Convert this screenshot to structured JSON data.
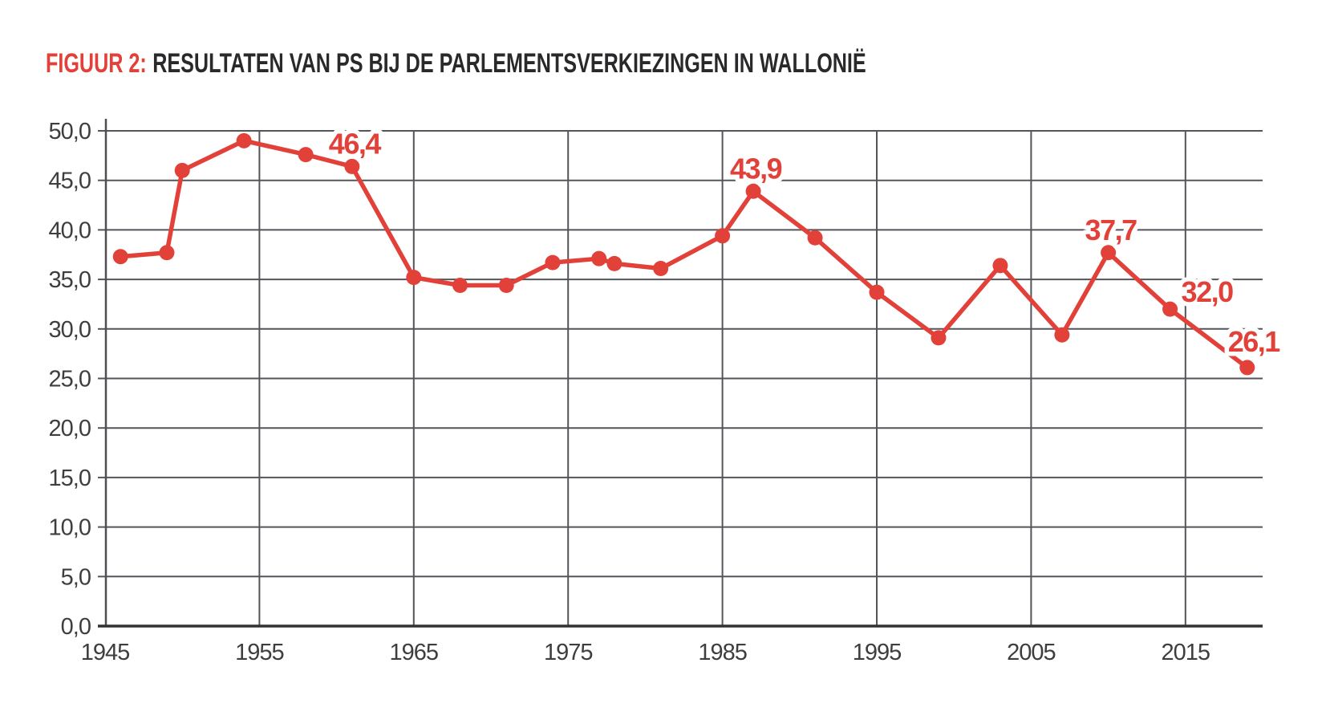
{
  "title": {
    "figure_label": "FIGUUR 2:",
    "text": "RESULTATEN VAN PS BIJ DE PARLEMENTSVERKIEZINGEN IN WALLONIË"
  },
  "colors": {
    "accent_red": "#e2413a",
    "title_dark": "#29282b",
    "tick_text": "#3e3e41",
    "gridline": "#54555a",
    "y_axis": "#4e4f53",
    "x_axis": "#323235",
    "background": "#ffffff"
  },
  "chart_data": {
    "type": "line",
    "title": "FIGUUR 2: RESULTATEN VAN PS BIJ DE PARLEMENTSVERKIEZINGEN IN WALLONIË",
    "xlabel": "",
    "ylabel": "",
    "x": [
      1946,
      1949,
      1950,
      1954,
      1958,
      1961,
      1965,
      1968,
      1971,
      1974,
      1977,
      1978,
      1981,
      1985,
      1987,
      1991,
      1995,
      1999,
      2003,
      2007,
      2010,
      2014,
      2019
    ],
    "series": [
      {
        "name": "PS",
        "color": "#e2413a",
        "values": [
          37.3,
          37.7,
          46.0,
          49.0,
          47.6,
          46.4,
          35.2,
          34.4,
          34.4,
          36.7,
          37.1,
          36.6,
          36.1,
          39.4,
          43.9,
          39.2,
          33.7,
          29.1,
          36.4,
          29.4,
          37.7,
          32.0,
          26.1
        ]
      }
    ],
    "xlim": [
      1945,
      2020
    ],
    "ylim": [
      0,
      50
    ],
    "x_ticks": [
      1945,
      1955,
      1965,
      1975,
      1985,
      1995,
      2005,
      2015
    ],
    "y_ticks": [
      0,
      5,
      10,
      15,
      20,
      25,
      30,
      35,
      40,
      45,
      50
    ],
    "y_tick_labels": [
      "0,0",
      "5,0",
      "10,0",
      "15,0",
      "20,0",
      "25,0",
      "30,0",
      "35,0",
      "40,0",
      "45,0",
      "50,0"
    ],
    "x_tick_labels": [
      "1945",
      "1955",
      "1965",
      "1975",
      "1985",
      "1995",
      "2005",
      "2015"
    ],
    "grid": true,
    "legend_position": "none",
    "decimal_separator": ",",
    "annotations": [
      {
        "year": 1961,
        "label": "46,4",
        "placement": "above"
      },
      {
        "year": 1987,
        "label": "43,9",
        "placement": "above"
      },
      {
        "year": 2010,
        "label": "37,7",
        "placement": "above"
      },
      {
        "year": 2014,
        "label": "32,0",
        "placement": "right"
      },
      {
        "year": 2019,
        "label": "26,1",
        "placement": "above-right"
      }
    ]
  }
}
